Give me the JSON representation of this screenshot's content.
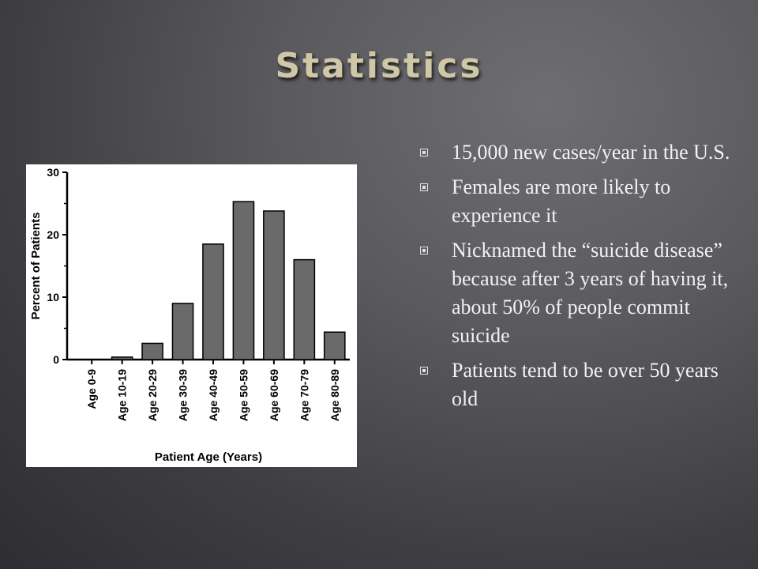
{
  "slide": {
    "title": "Statistics",
    "bullets": [
      "15,000 new cases/year in the U.S.",
      "Females are more likely to experience it",
      "Nicknamed the “suicide disease” because after 3 years of having it, about 50% of people commit suicide",
      "Patients tend to be over 50 years old"
    ]
  },
  "colors": {
    "bar": "#6a6a6a",
    "title": "#cfc7a6",
    "text": "#f2f2f2"
  },
  "chart_data": {
    "type": "bar",
    "title": "",
    "xlabel": "Patient Age (Years)",
    "ylabel": "Percent of Patients",
    "categories": [
      "Age 0-9",
      "Age 10-19",
      "Age 20-29",
      "Age 30-39",
      "Age 40-49",
      "Age 50-59",
      "Age 60-69",
      "Age 70-79",
      "Age 80-89"
    ],
    "values": [
      0,
      0.4,
      2.6,
      9,
      18.5,
      25.3,
      23.8,
      16,
      4.4
    ],
    "ylim": [
      0,
      30
    ],
    "yticks": [
      "0",
      "10",
      "20",
      "30"
    ],
    "grid": false,
    "legend": "none"
  }
}
